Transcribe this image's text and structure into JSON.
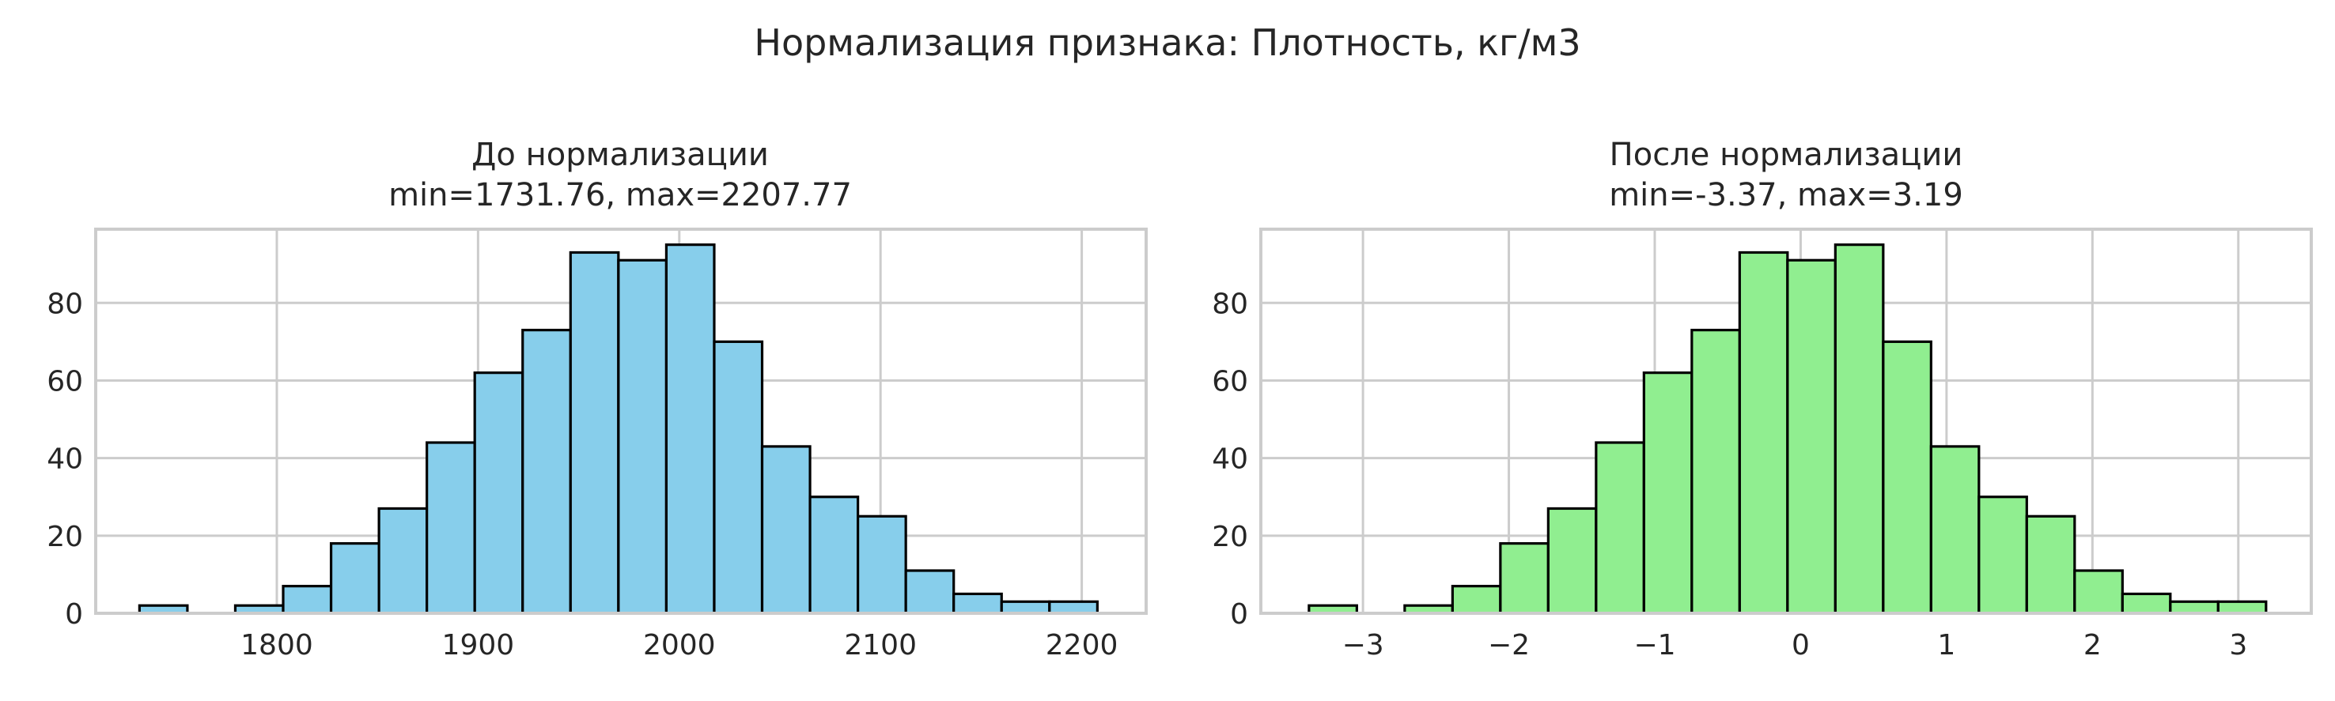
{
  "figure": {
    "suptitle": "Нормализация признака: Плотность, кг/м3"
  },
  "chart_data": [
    {
      "type": "bar",
      "title_line1": "До нормализации",
      "title_line2": "min=1731.76, max=2207.77",
      "xlabel": "",
      "ylabel": "",
      "bar_color": "#87ceeb",
      "edge_color": "#000000",
      "grid": true,
      "xlim": [
        1710,
        2232
      ],
      "ylim": [
        0,
        99
      ],
      "xticks": [
        1800,
        1900,
        2000,
        2100,
        2200
      ],
      "xtick_labels": [
        "1800",
        "1900",
        "2000",
        "2100",
        "2200"
      ],
      "yticks": [
        0,
        20,
        40,
        60,
        80
      ],
      "ytick_labels": [
        "0",
        "20",
        "40",
        "60",
        "80"
      ],
      "bin_edges": [
        1731.76,
        1755.56,
        1779.36,
        1803.16,
        1826.96,
        1850.76,
        1874.56,
        1898.36,
        1922.16,
        1945.96,
        1969.76,
        1993.57,
        2017.37,
        2041.17,
        2064.97,
        2088.77,
        2112.57,
        2136.37,
        2160.17,
        2183.97,
        2207.77
      ],
      "counts": [
        2,
        0,
        2,
        7,
        18,
        27,
        44,
        62,
        73,
        93,
        91,
        95,
        70,
        43,
        30,
        25,
        11,
        5,
        3,
        3
      ]
    },
    {
      "type": "bar",
      "title_line1": "После нормализации",
      "title_line2": "min=-3.37, max=3.19",
      "xlabel": "",
      "ylabel": "",
      "bar_color": "#90ee90",
      "edge_color": "#000000",
      "grid": true,
      "xlim": [
        -3.7,
        3.5
      ],
      "ylim": [
        0,
        99
      ],
      "xticks": [
        -3,
        -2,
        -1,
        0,
        1,
        2,
        3
      ],
      "xtick_labels": [
        "−3",
        "−2",
        "−1",
        "0",
        "1",
        "2",
        "3"
      ],
      "yticks": [
        0,
        20,
        40,
        60,
        80
      ],
      "ytick_labels": [
        "0",
        "20",
        "40",
        "60",
        "80"
      ],
      "bin_edges": [
        -3.37,
        -3.042,
        -2.714,
        -2.386,
        -2.058,
        -1.73,
        -1.402,
        -1.074,
        -0.746,
        -0.418,
        -0.09,
        0.238,
        0.566,
        0.894,
        1.222,
        1.55,
        1.878,
        2.206,
        2.534,
        2.862,
        3.19
      ],
      "counts": [
        2,
        0,
        2,
        7,
        18,
        27,
        44,
        62,
        73,
        93,
        91,
        95,
        70,
        43,
        30,
        25,
        11,
        5,
        3,
        3
      ]
    }
  ]
}
